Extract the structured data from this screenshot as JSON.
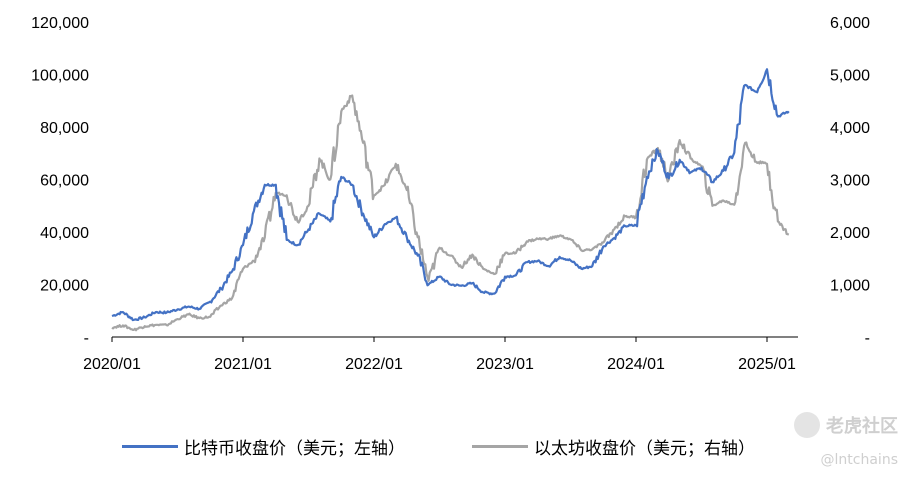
{
  "chart_data": {
    "type": "line",
    "title": "",
    "y_left": {
      "ticks": [
        0,
        20000,
        40000,
        60000,
        80000,
        100000,
        120000
      ],
      "tick_labels": [
        "-",
        "20,000",
        "40,000",
        "60,000",
        "80,000",
        "100,000",
        "120,000"
      ],
      "range": [
        0,
        120000
      ]
    },
    "y_right": {
      "ticks": [
        0,
        1000,
        2000,
        3000,
        4000,
        5000,
        6000
      ],
      "tick_labels": [
        "-",
        "1,000",
        "2,000",
        "3,000",
        "4,000",
        "5,000",
        "6,000"
      ],
      "range": [
        0,
        6000
      ]
    },
    "x_ticks": [
      "2020/01",
      "2021/01",
      "2022/01",
      "2023/01",
      "2024/01",
      "2025/01"
    ],
    "x_range": [
      "2020/01",
      "2025/03"
    ],
    "series": [
      {
        "name": "比特币收盘价（美元；左轴）",
        "axis": "left",
        "color": "#4472C4",
        "points": [
          [
            "2020/01",
            8000
          ],
          [
            "2020/02",
            9500
          ],
          [
            "2020/03",
            6500
          ],
          [
            "2020/04",
            7500
          ],
          [
            "2020/05",
            9500
          ],
          [
            "2020/06",
            9300
          ],
          [
            "2020/07",
            10500
          ],
          [
            "2020/08",
            11600
          ],
          [
            "2020/09",
            10700
          ],
          [
            "2020/10",
            13500
          ],
          [
            "2020/11",
            18500
          ],
          [
            "2020/12",
            25000
          ],
          [
            "2021/01",
            35000
          ],
          [
            "2021/02",
            48000
          ],
          [
            "2021/03",
            58000
          ],
          [
            "2021/04",
            58000
          ],
          [
            "2021/05",
            37000
          ],
          [
            "2021/06",
            35000
          ],
          [
            "2021/07",
            41000
          ],
          [
            "2021/08",
            47000
          ],
          [
            "2021/09",
            44000
          ],
          [
            "2021/10",
            61000
          ],
          [
            "2021/11",
            58000
          ],
          [
            "2021/12",
            47000
          ],
          [
            "2022/01",
            38000
          ],
          [
            "2022/02",
            43000
          ],
          [
            "2022/03",
            45500
          ],
          [
            "2022/04",
            38000
          ],
          [
            "2022/05",
            31000
          ],
          [
            "2022/06",
            20000
          ],
          [
            "2022/07",
            23000
          ],
          [
            "2022/08",
            20000
          ],
          [
            "2022/09",
            19500
          ],
          [
            "2022/10",
            20500
          ],
          [
            "2022/11",
            17000
          ],
          [
            "2022/12",
            16500
          ],
          [
            "2023/01",
            23000
          ],
          [
            "2023/02",
            23500
          ],
          [
            "2023/03",
            28500
          ],
          [
            "2023/04",
            29000
          ],
          [
            "2023/05",
            27000
          ],
          [
            "2023/06",
            30500
          ],
          [
            "2023/07",
            29200
          ],
          [
            "2023/08",
            26000
          ],
          [
            "2023/09",
            27000
          ],
          [
            "2023/10",
            34500
          ],
          [
            "2023/11",
            37700
          ],
          [
            "2023/12",
            42300
          ],
          [
            "2024/01",
            42500
          ],
          [
            "2024/02",
            61000
          ],
          [
            "2024/03",
            71000
          ],
          [
            "2024/04",
            60500
          ],
          [
            "2024/05",
            67500
          ],
          [
            "2024/06",
            62700
          ],
          [
            "2024/07",
            64500
          ],
          [
            "2024/08",
            59000
          ],
          [
            "2024/09",
            63300
          ],
          [
            "2024/10",
            70200
          ],
          [
            "2024/11",
            96000
          ],
          [
            "2024/12",
            93400
          ],
          [
            "2025/01",
            102000
          ],
          [
            "2025/02",
            84000
          ],
          [
            "2025/03",
            86000
          ]
        ]
      },
      {
        "name": "以太坊收盘价（美元；右轴）",
        "axis": "right",
        "color": "#A5A5A5",
        "points": [
          [
            "2020/01",
            180
          ],
          [
            "2020/02",
            220
          ],
          [
            "2020/03",
            135
          ],
          [
            "2020/04",
            205
          ],
          [
            "2020/05",
            230
          ],
          [
            "2020/06",
            225
          ],
          [
            "2020/07",
            340
          ],
          [
            "2020/08",
            430
          ],
          [
            "2020/09",
            360
          ],
          [
            "2020/10",
            385
          ],
          [
            "2020/11",
            600
          ],
          [
            "2020/12",
            740
          ],
          [
            "2021/01",
            1300
          ],
          [
            "2021/02",
            1450
          ],
          [
            "2021/03",
            1900
          ],
          [
            "2021/04",
            2750
          ],
          [
            "2021/05",
            2700
          ],
          [
            "2021/06",
            2200
          ],
          [
            "2021/07",
            2500
          ],
          [
            "2021/08",
            3400
          ],
          [
            "2021/09",
            3000
          ],
          [
            "2021/10",
            4300
          ],
          [
            "2021/11",
            4600
          ],
          [
            "2021/12",
            3700
          ],
          [
            "2022/01",
            2700
          ],
          [
            "2022/02",
            2900
          ],
          [
            "2022/03",
            3300
          ],
          [
            "2022/04",
            2800
          ],
          [
            "2022/05",
            1900
          ],
          [
            "2022/06",
            1070
          ],
          [
            "2022/07",
            1700
          ],
          [
            "2022/08",
            1550
          ],
          [
            "2022/09",
            1330
          ],
          [
            "2022/10",
            1570
          ],
          [
            "2022/11",
            1300
          ],
          [
            "2022/12",
            1200
          ],
          [
            "2023/01",
            1590
          ],
          [
            "2023/02",
            1600
          ],
          [
            "2023/03",
            1820
          ],
          [
            "2023/04",
            1870
          ],
          [
            "2023/05",
            1870
          ],
          [
            "2023/06",
            1930
          ],
          [
            "2023/07",
            1860
          ],
          [
            "2023/08",
            1650
          ],
          [
            "2023/09",
            1670
          ],
          [
            "2023/10",
            1800
          ],
          [
            "2023/11",
            2050
          ],
          [
            "2023/12",
            2300
          ],
          [
            "2024/01",
            2280
          ],
          [
            "2024/02",
            3380
          ],
          [
            "2024/03",
            3600
          ],
          [
            "2024/04",
            3000
          ],
          [
            "2024/05",
            3750
          ],
          [
            "2024/06",
            3400
          ],
          [
            "2024/07",
            3250
          ],
          [
            "2024/08",
            2500
          ],
          [
            "2024/09",
            2600
          ],
          [
            "2024/10",
            2520
          ],
          [
            "2024/11",
            3700
          ],
          [
            "2024/12",
            3340
          ],
          [
            "2025/01",
            3300
          ],
          [
            "2025/02",
            2200
          ],
          [
            "2025/03",
            1950
          ]
        ]
      }
    ],
    "legend_position": "bottom",
    "grid": false
  },
  "watermark": {
    "brand": "老虎社区",
    "handle": "@lntchains"
  }
}
